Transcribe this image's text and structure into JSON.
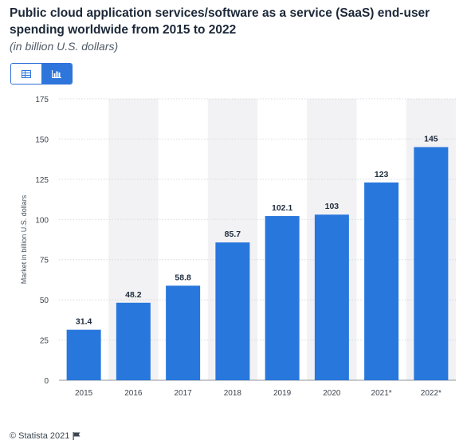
{
  "header": {
    "title": "Public cloud application services/software as a service (SaaS) end-user spending worldwide from 2015 to 2022",
    "subtitle": "(in billion U.S. dollars)"
  },
  "view_toggle": {
    "table_icon": "table-icon",
    "chart_icon": "bar-chart-icon",
    "active": "chart"
  },
  "footer": {
    "copyright": "© Statista 2021",
    "flag_icon": "flag-icon"
  },
  "colors": {
    "bar": "#2877dc",
    "band": "#f2f2f4",
    "accent": "#2e76dc"
  },
  "chart_data": {
    "type": "bar",
    "categories": [
      "2015",
      "2016",
      "2017",
      "2018",
      "2019",
      "2020",
      "2021*",
      "2022*"
    ],
    "values": [
      31.4,
      48.2,
      58.8,
      85.7,
      102.1,
      103,
      123,
      145
    ],
    "value_labels": [
      "31.4",
      "48.2",
      "58.8",
      "85.7",
      "102.1",
      "103",
      "123",
      "145"
    ],
    "ylabel": "Market in billion U.S. dollars",
    "xlabel": "",
    "ylim": [
      0,
      175
    ],
    "yticks": [
      0,
      25,
      50,
      75,
      100,
      125,
      150,
      175
    ],
    "grid": true,
    "alternating_bands": true
  }
}
